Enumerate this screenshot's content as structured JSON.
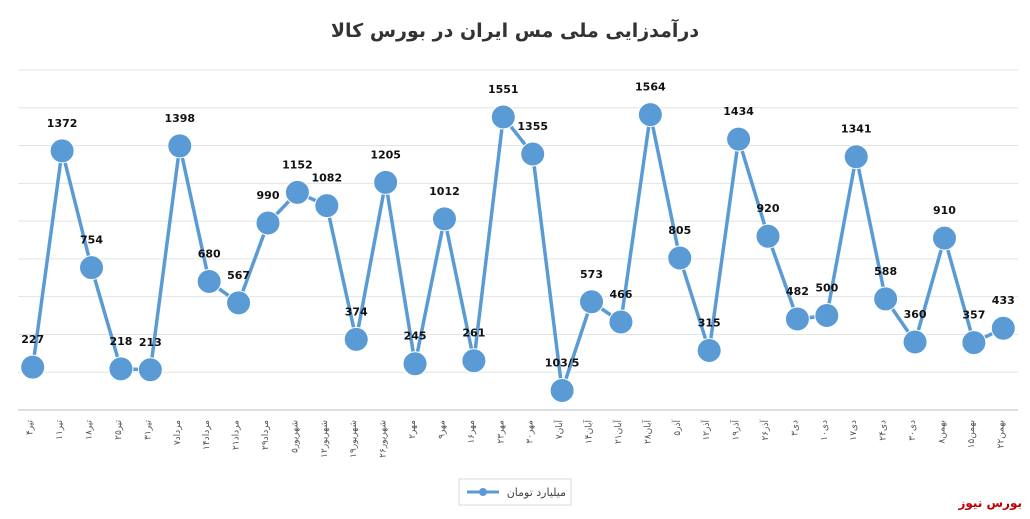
{
  "chart_data": {
    "type": "line",
    "title": "درآمدزایی ملی مس ایران در بورس کالا",
    "xlabel": "",
    "ylabel": "",
    "ylim": [
      0,
      1800
    ],
    "grid": true,
    "legend_position": "bottom",
    "categories": [
      "۴تیر",
      "۱۱تیر",
      "۱۸تیر",
      "۲۵تیر",
      "۳۱تیر",
      "۷مرداد",
      "۱۴مرداد",
      "۲۱مرداد",
      "۲۹مرداد",
      "۵شهریور",
      "۱۲شهریور",
      "۱۹شهریور",
      "۲۶شهریور",
      "۲مهر",
      "۹مهر",
      "۱۶مهر",
      "۲۳مهر",
      "۳۰مهر",
      "۷آبان",
      "۱۴آبان",
      "۲۱آبان",
      "۲۸آبان",
      "۵آذر",
      "۱۲آذر",
      "۱۹آذر",
      "۲۶آذر",
      "۳دی",
      "۱۰دی",
      "۱۷دی",
      "۲۴دی",
      "۳۰دی",
      "۸بهمن",
      "۱۵بهمن",
      "۲۲بهمن"
    ],
    "series": [
      {
        "name": "میلیارد تومان",
        "color": "#5b9bd5",
        "values": [
          227,
          1372,
          754,
          218,
          213,
          1398,
          680,
          567,
          990,
          1152,
          1082,
          374,
          1205,
          245,
          1012,
          261,
          1551,
          1355,
          103.5,
          573,
          466,
          1564,
          805,
          315,
          1434,
          920,
          482,
          500,
          1341,
          588,
          360,
          910,
          357,
          433
        ],
        "labels": [
          "227",
          "1372",
          "754",
          "218",
          "213",
          "1398",
          "680",
          "567",
          "990",
          "1152",
          "1082",
          "374",
          "1205",
          "245",
          "1012",
          "261",
          "1551",
          "1355",
          "103/5",
          "573",
          "466",
          "1564",
          "805",
          "315",
          "1434",
          "920",
          "482",
          "500",
          "1341",
          "588",
          "360",
          "910",
          "357",
          "433"
        ]
      }
    ]
  },
  "watermark": {
    "text": "بورس نیوز",
    "color": "#c00000"
  }
}
